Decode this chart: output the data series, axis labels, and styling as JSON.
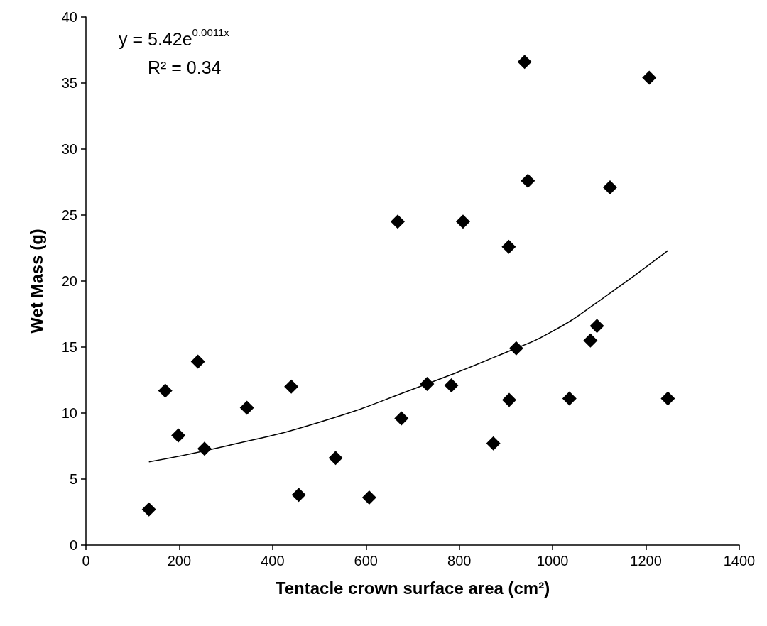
{
  "chart_data": {
    "type": "scatter",
    "xlabel": "Tentacle crown surface area (cm²)",
    "ylabel": "Wet Mass (g)",
    "xlim": [
      0,
      1400
    ],
    "xticks": [
      0,
      200,
      400,
      600,
      800,
      1000,
      1200,
      1400
    ],
    "ylim": [
      0,
      40
    ],
    "yticks": [
      0,
      5,
      10,
      15,
      20,
      25,
      30,
      35,
      40
    ],
    "grid": false,
    "marker": "diamond",
    "annotations": [
      "y = 5.42e$^{0.0011x}$",
      "R² = 0.34"
    ],
    "series": [
      {
        "color": "#000000",
        "x": [
          135,
          170,
          198,
          240,
          254,
          345,
          440,
          456,
          535,
          607,
          668,
          676,
          731,
          783,
          808,
          873,
          906,
          907,
          922,
          940,
          947,
          1036,
          1081,
          1095,
          1123,
          1207,
          1247
        ],
        "values": [
          2.7,
          11.7,
          8.3,
          13.9,
          7.3,
          10.4,
          12.0,
          3.8,
          6.6,
          3.6,
          24.5,
          9.6,
          12.2,
          12.1,
          24.5,
          7.7,
          22.6,
          11.0,
          14.9,
          36.6,
          27.6,
          11.1,
          15.5,
          16.6,
          27.1,
          35.4,
          11.1
        ]
      },
      {
        "type": "line",
        "color": "#000000",
        "marker": "none",
        "x": [
          135,
          300,
          500,
          700,
          900,
          1000,
          1100,
          1247
        ],
        "values": [
          6.3,
          7.5,
          9.3,
          11.8,
          14.6,
          16.2,
          18.5,
          22.3
        ]
      }
    ]
  }
}
